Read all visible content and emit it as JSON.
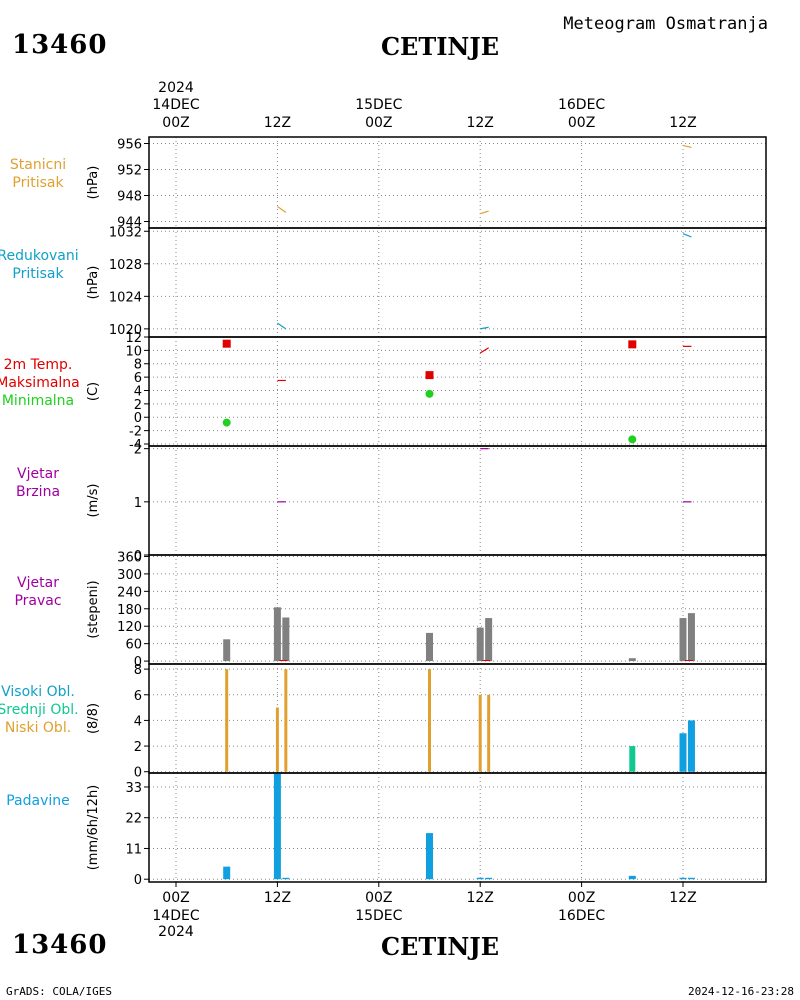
{
  "header": {
    "station_id": "13460",
    "station_name": "CETINJE",
    "subtitle": "Meteogram Osmatranja"
  },
  "footer": {
    "left": "GrADS: COLA/IGES",
    "right": "2024-12-16-23:28"
  },
  "time_axis": {
    "year": "2024",
    "ticks": [
      {
        "hour": "00Z",
        "date": "14DEC"
      },
      {
        "hour": "12Z",
        "date": ""
      },
      {
        "hour": "00Z",
        "date": "15DEC"
      },
      {
        "hour": "12Z",
        "date": ""
      },
      {
        "hour": "00Z",
        "date": "16DEC"
      },
      {
        "hour": "12Z",
        "date": ""
      }
    ]
  },
  "colors": {
    "orange": "#e0a030",
    "cyan": "#10a0c8",
    "red": "#e00000",
    "green": "#20d020",
    "purple": "#a000a0",
    "gray": "#808080",
    "teal": "#10c890",
    "blue": "#10a0e0"
  },
  "chart_data": [
    {
      "type": "line",
      "panel": "stanicni-pritisak",
      "labels": [
        "Stanicni",
        "Pritisak"
      ],
      "ylabel": "(hPa)",
      "ylim": [
        943,
        957
      ],
      "yticks": [
        944,
        948,
        952,
        956
      ],
      "x_unit": "hours from 14DEC 00Z",
      "series": [
        {
          "color": "orange",
          "segments": [
            [
              [
                12,
                946.3
              ],
              [
                13,
                945.4
              ]
            ],
            [
              [
                36,
                945.2
              ],
              [
                37,
                945.6
              ]
            ],
            [
              [
                60,
                955.7
              ],
              [
                61,
                955.4
              ]
            ]
          ]
        }
      ]
    },
    {
      "type": "line",
      "panel": "redukovani-pritisak",
      "labels": [
        "Redukovani",
        "Pritisak"
      ],
      "ylabel": "(hPa)",
      "ylim": [
        1019,
        1032.4
      ],
      "yticks": [
        1020,
        1024,
        1028,
        1032
      ],
      "x_unit": "hours from 14DEC 00Z",
      "series": [
        {
          "color": "cyan",
          "segments": [
            [
              [
                12,
                1020.7
              ],
              [
                13,
                1020
              ]
            ],
            [
              [
                36,
                1020
              ],
              [
                37,
                1020.2
              ]
            ],
            [
              [
                60,
                1031.7
              ],
              [
                61,
                1031.3
              ]
            ]
          ]
        }
      ]
    },
    {
      "type": "scatter",
      "panel": "temperatura",
      "labels": [
        "2m Temp.",
        "Maksimalna",
        "Minimalna"
      ],
      "label_colors": [
        "red",
        "red",
        "green"
      ],
      "ylabel": "(C)",
      "ylim": [
        -4.3,
        12
      ],
      "yticks": [
        -4,
        -2,
        0,
        2,
        4,
        6,
        8,
        10,
        12
      ],
      "x_unit": "hours from 14DEC 00Z",
      "temp_segments": [
        [
          [
            12,
            5.5
          ],
          [
            13,
            5.5
          ]
        ],
        [
          [
            36,
            9.6
          ],
          [
            37,
            10.4
          ]
        ],
        [
          [
            60,
            10.6
          ],
          [
            61,
            10.6
          ]
        ]
      ],
      "maksimalna": [
        [
          6,
          11
        ],
        [
          30,
          6.3
        ],
        [
          54,
          10.9
        ]
      ],
      "minimalna": [
        [
          6,
          -0.8
        ],
        [
          30,
          3.5
        ],
        [
          54,
          -3.3
        ]
      ]
    },
    {
      "type": "line",
      "panel": "vjetar-brzina",
      "labels": [
        "Vjetar",
        "Brzina"
      ],
      "ylabel": "(m/s)",
      "ylim": [
        0,
        2.05
      ],
      "yticks": [
        0,
        1,
        2
      ],
      "x_unit": "hours from 14DEC 00Z",
      "series": [
        {
          "color": "purple",
          "segments": [
            [
              [
                12,
                1
              ],
              [
                13,
                1
              ]
            ],
            [
              [
                36,
                2
              ],
              [
                37,
                2
              ]
            ],
            [
              [
                60,
                1
              ],
              [
                61,
                1
              ]
            ]
          ]
        }
      ]
    },
    {
      "type": "bar",
      "panel": "vjetar-pravac",
      "labels": [
        "Vjetar",
        "Pravac"
      ],
      "ylabel": "(stepeni)",
      "ylim": [
        -10,
        365
      ],
      "yticks": [
        0,
        60,
        120,
        180,
        240,
        300,
        360
      ],
      "x_unit": "hours from 14DEC 00Z",
      "bars": [
        [
          6,
          75
        ],
        [
          12,
          185
        ],
        [
          13,
          150
        ],
        [
          30,
          97
        ],
        [
          36,
          115
        ],
        [
          37,
          148
        ],
        [
          54,
          10
        ],
        [
          60,
          148
        ],
        [
          61,
          165
        ]
      ],
      "bar_color": "gray"
    },
    {
      "type": "bar",
      "panel": "oblacnost",
      "labels": [
        "Visoki Obl.",
        "Srednji Obl.",
        "Niski Obl."
      ],
      "label_colors": [
        "cyan",
        "teal",
        "orange"
      ],
      "ylabel": "(8/8)",
      "ylim": [
        -0.1,
        8.4
      ],
      "yticks": [
        0,
        2,
        4,
        6,
        8
      ],
      "x_unit": "hours from 14DEC 00Z",
      "visoki": [
        [
          60,
          3
        ],
        [
          61,
          4
        ]
      ],
      "srednji": [
        [
          12,
          3
        ],
        [
          54,
          2
        ]
      ],
      "niski": [
        [
          6,
          8
        ],
        [
          12,
          5
        ],
        [
          13,
          8
        ],
        [
          30,
          8
        ],
        [
          36,
          6
        ],
        [
          37,
          6
        ]
      ]
    },
    {
      "type": "bar",
      "panel": "padavine",
      "labels": [
        "Padavine"
      ],
      "ylabel": "(mm/6h/12h)",
      "ylim": [
        -1,
        38
      ],
      "yticks": [
        0,
        11,
        22,
        33
      ],
      "x_unit": "hours from 14DEC 00Z",
      "bars": [
        [
          6,
          4.5
        ],
        [
          12,
          38
        ],
        [
          13,
          0.5
        ],
        [
          30,
          16.5
        ],
        [
          36,
          0.5
        ],
        [
          37,
          0.5
        ],
        [
          54,
          1.2
        ],
        [
          60,
          0.5
        ],
        [
          61,
          0.5
        ]
      ],
      "bar_color": "blue"
    }
  ]
}
